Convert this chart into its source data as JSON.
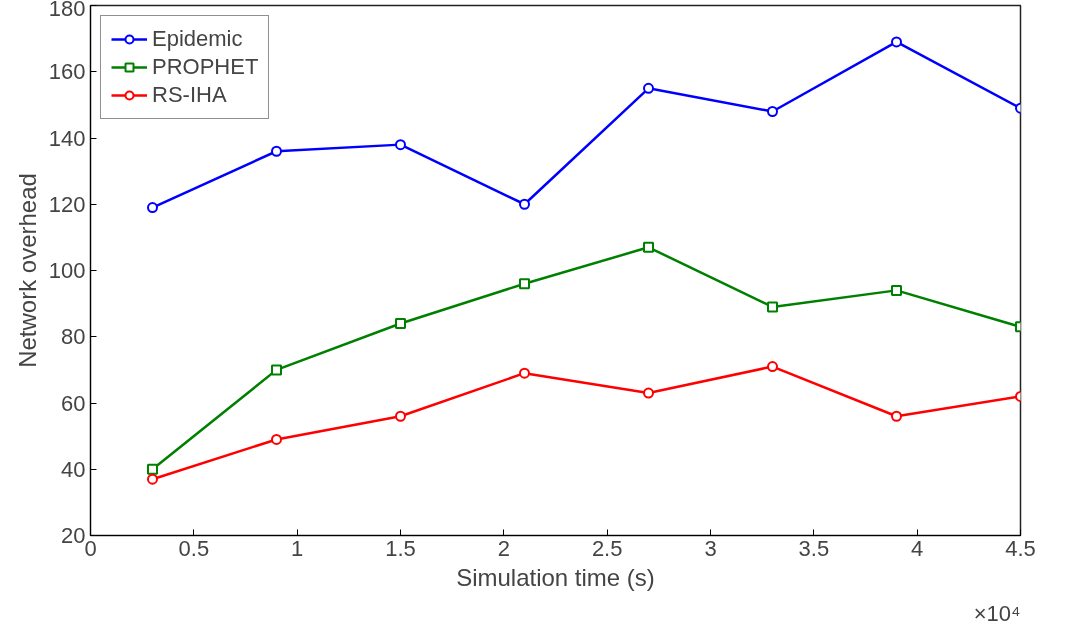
{
  "chart_data": {
    "type": "line",
    "xlabel": "Simulation time (s)",
    "ylabel": "Network overhead",
    "annotations": [
      "×10⁴"
    ],
    "x": [
      0.3,
      0.9,
      1.5,
      2.1,
      2.7,
      3.3,
      3.9,
      4.5
    ],
    "series": [
      {
        "name": "Epidemic",
        "color": "#0000ff",
        "marker": "circle",
        "values": [
          119,
          136,
          138,
          120,
          155,
          148,
          169,
          149
        ]
      },
      {
        "name": "PROPHET",
        "color": "#008000",
        "marker": "square",
        "values": [
          40,
          70,
          84,
          96,
          107,
          89,
          94,
          83
        ]
      },
      {
        "name": "RS-IHA",
        "color": "#ff0000",
        "marker": "circle",
        "values": [
          37,
          49,
          56,
          69,
          63,
          71,
          56,
          62
        ]
      }
    ],
    "xlim": [
      0,
      4.5
    ],
    "xticks": [
      0,
      0.5,
      1,
      1.5,
      2,
      2.5,
      3,
      3.5,
      4,
      4.5
    ],
    "ylim": [
      20,
      180
    ],
    "yticks": [
      20,
      40,
      60,
      80,
      100,
      120,
      140,
      160,
      180
    ],
    "grid": false,
    "legend": "top left",
    "line_style": "solid"
  }
}
